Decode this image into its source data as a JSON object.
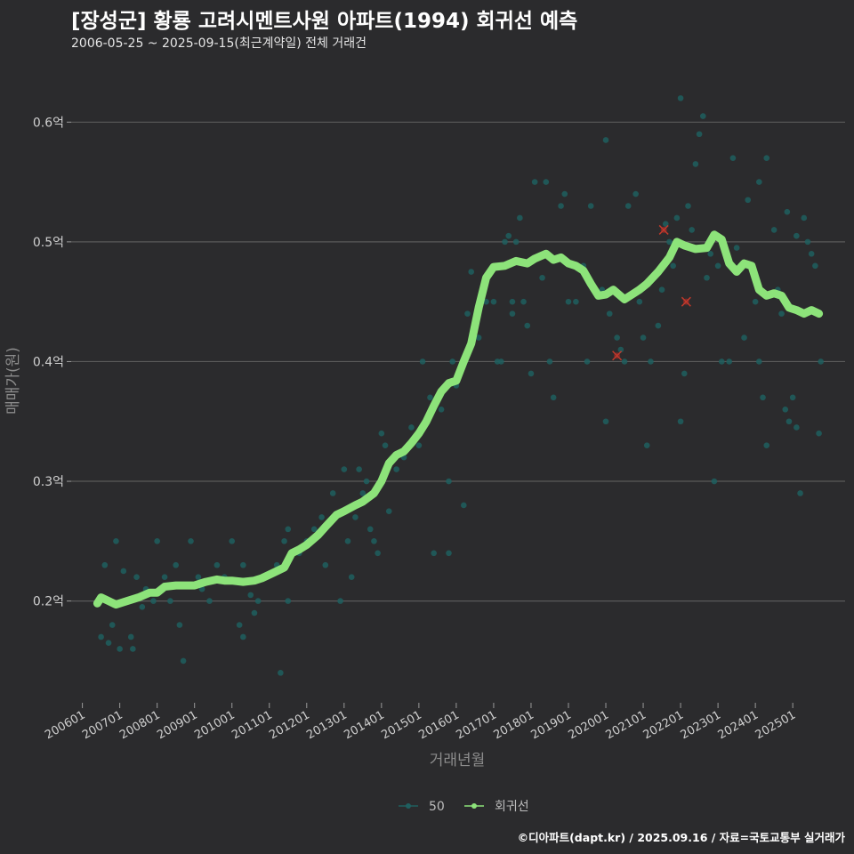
{
  "header": {
    "title": "[장성군] 황룡 고려시멘트사원 아파트(1994) 회귀선 예측",
    "subtitle": "2006-05-25 ~ 2025-09-15(최근계약일) 전체 거래건"
  },
  "footer": {
    "credit": "©디아파트(dapt.kr) / 2025.09.16 / 자료=국토교통부 실거래가"
  },
  "colors": {
    "background": "#2b2b2d",
    "grid": "#5a5a5a",
    "points": "#1f5f5f",
    "regression": "#8de37a",
    "outlier": "#c0392b"
  },
  "chart_data": {
    "type": "scatter",
    "title": "[장성군] 황룡 고려시멘트사원 아파트(1994) 회귀선 예측",
    "xlabel": "거래년월",
    "ylabel": "매매가(원)",
    "ylim": [
      0.115,
      0.65
    ],
    "xlim": [
      2005.7,
      2026.4
    ],
    "y_ticks": [
      {
        "value": 0.2,
        "label": "0.2억"
      },
      {
        "value": 0.3,
        "label": "0.3억"
      },
      {
        "value": 0.4,
        "label": "0.4억"
      },
      {
        "value": 0.5,
        "label": "0.5억"
      },
      {
        "value": 0.6,
        "label": "0.6억"
      }
    ],
    "x_ticks": [
      {
        "value": 2006.0,
        "label": "200601"
      },
      {
        "value": 2007.0,
        "label": "200701"
      },
      {
        "value": 2008.0,
        "label": "200801"
      },
      {
        "value": 2009.0,
        "label": "200901"
      },
      {
        "value": 2010.0,
        "label": "201001"
      },
      {
        "value": 2011.0,
        "label": "201101"
      },
      {
        "value": 2012.0,
        "label": "201201"
      },
      {
        "value": 2013.0,
        "label": "201301"
      },
      {
        "value": 2014.0,
        "label": "201401"
      },
      {
        "value": 2015.0,
        "label": "201501"
      },
      {
        "value": 2016.0,
        "label": "201601"
      },
      {
        "value": 2017.0,
        "label": "201701"
      },
      {
        "value": 2018.0,
        "label": "201801"
      },
      {
        "value": 2019.0,
        "label": "201901"
      },
      {
        "value": 2020.0,
        "label": "202001"
      },
      {
        "value": 2021.0,
        "label": "202101"
      },
      {
        "value": 2022.0,
        "label": "202201"
      },
      {
        "value": 2023.0,
        "label": "202301"
      },
      {
        "value": 2024.0,
        "label": "202401"
      },
      {
        "value": 2025.0,
        "label": "202501"
      }
    ],
    "legend": [
      {
        "name": "50",
        "color": "#1f5f5f"
      },
      {
        "name": "회귀선",
        "color": "#8de37a"
      }
    ],
    "scatter_points": [
      [
        2006.5,
        0.17
      ],
      [
        2006.6,
        0.23
      ],
      [
        2006.7,
        0.165
      ],
      [
        2006.8,
        0.18
      ],
      [
        2006.9,
        0.25
      ],
      [
        2007.0,
        0.16
      ],
      [
        2007.1,
        0.225
      ],
      [
        2007.2,
        0.2
      ],
      [
        2007.3,
        0.17
      ],
      [
        2007.35,
        0.16
      ],
      [
        2007.45,
        0.22
      ],
      [
        2007.6,
        0.195
      ],
      [
        2007.7,
        0.21
      ],
      [
        2007.9,
        0.2
      ],
      [
        2008.0,
        0.25
      ],
      [
        2008.2,
        0.22
      ],
      [
        2008.35,
        0.2
      ],
      [
        2008.5,
        0.23
      ],
      [
        2008.6,
        0.18
      ],
      [
        2008.7,
        0.15
      ],
      [
        2008.9,
        0.25
      ],
      [
        2009.1,
        0.22
      ],
      [
        2009.2,
        0.21
      ],
      [
        2009.4,
        0.2
      ],
      [
        2009.6,
        0.23
      ],
      [
        2009.8,
        0.22
      ],
      [
        2010.0,
        0.25
      ],
      [
        2010.2,
        0.18
      ],
      [
        2010.3,
        0.17
      ],
      [
        2010.3,
        0.23
      ],
      [
        2010.5,
        0.205
      ],
      [
        2010.6,
        0.19
      ],
      [
        2010.7,
        0.2
      ],
      [
        2010.9,
        0.22
      ],
      [
        2011.2,
        0.23
      ],
      [
        2011.3,
        0.14
      ],
      [
        2011.4,
        0.25
      ],
      [
        2011.5,
        0.26
      ],
      [
        2011.5,
        0.2
      ],
      [
        2011.8,
        0.24
      ],
      [
        2012.0,
        0.25
      ],
      [
        2012.2,
        0.26
      ],
      [
        2012.4,
        0.27
      ],
      [
        2012.5,
        0.23
      ],
      [
        2012.7,
        0.29
      ],
      [
        2012.9,
        0.2
      ],
      [
        2013.0,
        0.31
      ],
      [
        2013.1,
        0.25
      ],
      [
        2013.2,
        0.22
      ],
      [
        2013.3,
        0.27
      ],
      [
        2013.4,
        0.31
      ],
      [
        2013.5,
        0.29
      ],
      [
        2013.6,
        0.3
      ],
      [
        2013.7,
        0.26
      ],
      [
        2013.8,
        0.25
      ],
      [
        2013.9,
        0.24
      ],
      [
        2014.0,
        0.34
      ],
      [
        2014.1,
        0.33
      ],
      [
        2014.2,
        0.275
      ],
      [
        2014.4,
        0.31
      ],
      [
        2014.6,
        0.32
      ],
      [
        2014.8,
        0.345
      ],
      [
        2015.0,
        0.33
      ],
      [
        2015.1,
        0.4
      ],
      [
        2015.3,
        0.37
      ],
      [
        2015.4,
        0.24
      ],
      [
        2015.6,
        0.36
      ],
      [
        2015.8,
        0.24
      ],
      [
        2015.8,
        0.3
      ],
      [
        2015.9,
        0.4
      ],
      [
        2016.0,
        0.38
      ],
      [
        2016.2,
        0.28
      ],
      [
        2016.3,
        0.44
      ],
      [
        2016.4,
        0.475
      ],
      [
        2016.6,
        0.42
      ],
      [
        2016.8,
        0.45
      ],
      [
        2017.0,
        0.45
      ],
      [
        2017.1,
        0.4
      ],
      [
        2017.2,
        0.4
      ],
      [
        2017.3,
        0.5
      ],
      [
        2017.4,
        0.505
      ],
      [
        2017.5,
        0.45
      ],
      [
        2017.5,
        0.44
      ],
      [
        2017.6,
        0.5
      ],
      [
        2017.7,
        0.52
      ],
      [
        2017.8,
        0.45
      ],
      [
        2017.9,
        0.43
      ],
      [
        2018.0,
        0.39
      ],
      [
        2018.1,
        0.55
      ],
      [
        2018.3,
        0.47
      ],
      [
        2018.4,
        0.55
      ],
      [
        2018.5,
        0.4
      ],
      [
        2018.6,
        0.37
      ],
      [
        2018.8,
        0.53
      ],
      [
        2018.9,
        0.54
      ],
      [
        2019.0,
        0.45
      ],
      [
        2019.2,
        0.45
      ],
      [
        2019.4,
        0.48
      ],
      [
        2019.5,
        0.4
      ],
      [
        2019.6,
        0.53
      ],
      [
        2019.9,
        0.46
      ],
      [
        2020.0,
        0.35
      ],
      [
        2020.0,
        0.585
      ],
      [
        2020.1,
        0.44
      ],
      [
        2020.3,
        0.42
      ],
      [
        2020.4,
        0.41
      ],
      [
        2020.5,
        0.4
      ],
      [
        2020.6,
        0.53
      ],
      [
        2020.8,
        0.54
      ],
      [
        2020.9,
        0.45
      ],
      [
        2021.0,
        0.42
      ],
      [
        2021.1,
        0.33
      ],
      [
        2021.2,
        0.4
      ],
      [
        2021.4,
        0.43
      ],
      [
        2021.5,
        0.46
      ],
      [
        2021.6,
        0.515
      ],
      [
        2021.7,
        0.5
      ],
      [
        2021.8,
        0.48
      ],
      [
        2021.9,
        0.52
      ],
      [
        2022.0,
        0.62
      ],
      [
        2022.0,
        0.35
      ],
      [
        2022.1,
        0.39
      ],
      [
        2022.2,
        0.53
      ],
      [
        2022.3,
        0.51
      ],
      [
        2022.4,
        0.565
      ],
      [
        2022.5,
        0.59
      ],
      [
        2022.6,
        0.605
      ],
      [
        2022.7,
        0.47
      ],
      [
        2022.8,
        0.49
      ],
      [
        2022.9,
        0.3
      ],
      [
        2023.0,
        0.48
      ],
      [
        2023.1,
        0.4
      ],
      [
        2023.3,
        0.4
      ],
      [
        2023.4,
        0.57
      ],
      [
        2023.5,
        0.495
      ],
      [
        2023.6,
        0.48
      ],
      [
        2023.7,
        0.42
      ],
      [
        2023.8,
        0.535
      ],
      [
        2023.9,
        0.48
      ],
      [
        2024.0,
        0.45
      ],
      [
        2024.1,
        0.4
      ],
      [
        2024.1,
        0.55
      ],
      [
        2024.2,
        0.37
      ],
      [
        2024.3,
        0.57
      ],
      [
        2024.3,
        0.33
      ],
      [
        2024.5,
        0.51
      ],
      [
        2024.6,
        0.46
      ],
      [
        2024.7,
        0.44
      ],
      [
        2024.8,
        0.36
      ],
      [
        2024.85,
        0.525
      ],
      [
        2024.9,
        0.35
      ],
      [
        2025.0,
        0.37
      ],
      [
        2025.1,
        0.345
      ],
      [
        2025.1,
        0.505
      ],
      [
        2025.2,
        0.29
      ],
      [
        2025.3,
        0.52
      ],
      [
        2025.4,
        0.5
      ],
      [
        2025.5,
        0.49
      ],
      [
        2025.6,
        0.48
      ],
      [
        2025.7,
        0.34
      ],
      [
        2025.75,
        0.4
      ]
    ],
    "outliers": [
      [
        2020.3,
        0.405
      ],
      [
        2021.55,
        0.51
      ],
      [
        2022.15,
        0.45
      ]
    ],
    "regression": [
      [
        2006.4,
        0.198
      ],
      [
        2006.5,
        0.203
      ],
      [
        2006.7,
        0.2
      ],
      [
        2006.9,
        0.197
      ],
      [
        2007.2,
        0.2
      ],
      [
        2007.5,
        0.203
      ],
      [
        2007.8,
        0.207
      ],
      [
        2008.0,
        0.207
      ],
      [
        2008.2,
        0.212
      ],
      [
        2008.5,
        0.213
      ],
      [
        2008.8,
        0.213
      ],
      [
        2009.0,
        0.213
      ],
      [
        2009.3,
        0.216
      ],
      [
        2009.6,
        0.218
      ],
      [
        2009.8,
        0.217
      ],
      [
        2010.0,
        0.217
      ],
      [
        2010.3,
        0.216
      ],
      [
        2010.6,
        0.217
      ],
      [
        2010.8,
        0.219
      ],
      [
        2011.0,
        0.222
      ],
      [
        2011.2,
        0.225
      ],
      [
        2011.4,
        0.228
      ],
      [
        2011.6,
        0.24
      ],
      [
        2011.8,
        0.243
      ],
      [
        2012.0,
        0.247
      ],
      [
        2012.3,
        0.255
      ],
      [
        2012.5,
        0.262
      ],
      [
        2012.8,
        0.272
      ],
      [
        2013.0,
        0.275
      ],
      [
        2013.3,
        0.28
      ],
      [
        2013.5,
        0.283
      ],
      [
        2013.8,
        0.29
      ],
      [
        2014.0,
        0.3
      ],
      [
        2014.2,
        0.315
      ],
      [
        2014.4,
        0.322
      ],
      [
        2014.6,
        0.325
      ],
      [
        2014.8,
        0.332
      ],
      [
        2015.0,
        0.34
      ],
      [
        2015.2,
        0.35
      ],
      [
        2015.4,
        0.363
      ],
      [
        2015.6,
        0.375
      ],
      [
        2015.8,
        0.382
      ],
      [
        2016.0,
        0.384
      ],
      [
        2016.2,
        0.4
      ],
      [
        2016.4,
        0.415
      ],
      [
        2016.6,
        0.445
      ],
      [
        2016.8,
        0.47
      ],
      [
        2017.0,
        0.479
      ],
      [
        2017.3,
        0.48
      ],
      [
        2017.6,
        0.484
      ],
      [
        2017.9,
        0.482
      ],
      [
        2018.1,
        0.486
      ],
      [
        2018.4,
        0.49
      ],
      [
        2018.6,
        0.485
      ],
      [
        2018.8,
        0.487
      ],
      [
        2019.0,
        0.482
      ],
      [
        2019.2,
        0.48
      ],
      [
        2019.4,
        0.476
      ],
      [
        2019.6,
        0.465
      ],
      [
        2019.8,
        0.455
      ],
      [
        2020.0,
        0.456
      ],
      [
        2020.2,
        0.46
      ],
      [
        2020.5,
        0.452
      ],
      [
        2020.7,
        0.456
      ],
      [
        2020.9,
        0.46
      ],
      [
        2021.1,
        0.465
      ],
      [
        2021.4,
        0.475
      ],
      [
        2021.7,
        0.487
      ],
      [
        2021.9,
        0.5
      ],
      [
        2022.1,
        0.497
      ],
      [
        2022.4,
        0.494
      ],
      [
        2022.7,
        0.495
      ],
      [
        2022.9,
        0.506
      ],
      [
        2023.1,
        0.502
      ],
      [
        2023.3,
        0.482
      ],
      [
        2023.5,
        0.475
      ],
      [
        2023.7,
        0.482
      ],
      [
        2023.9,
        0.48
      ],
      [
        2024.1,
        0.46
      ],
      [
        2024.3,
        0.455
      ],
      [
        2024.5,
        0.457
      ],
      [
        2024.7,
        0.455
      ],
      [
        2024.9,
        0.445
      ],
      [
        2025.1,
        0.443
      ],
      [
        2025.3,
        0.44
      ],
      [
        2025.5,
        0.443
      ],
      [
        2025.7,
        0.44
      ]
    ]
  }
}
